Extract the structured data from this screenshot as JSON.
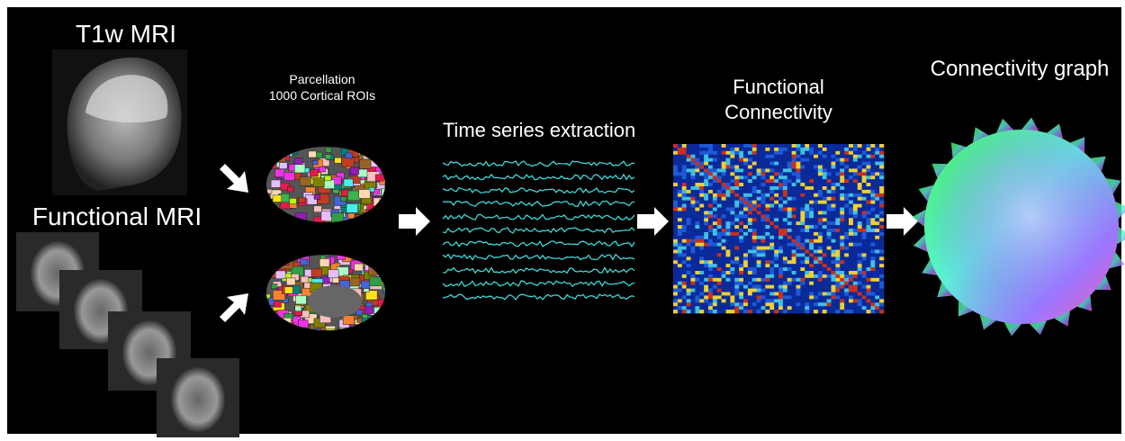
{
  "inputs": {
    "t1w_label": "T1w MRI",
    "fmri_label": "Functional MRI"
  },
  "parcellation": {
    "title": "Parcellation",
    "subtitle": "1000 Cortical ROIs"
  },
  "time_series": {
    "title": "Time series extraction"
  },
  "functional_connectivity": {
    "title_lines": [
      "Functional",
      "Connectivity"
    ]
  },
  "connectivity_graph": {
    "title": "Connectivity graph"
  }
}
